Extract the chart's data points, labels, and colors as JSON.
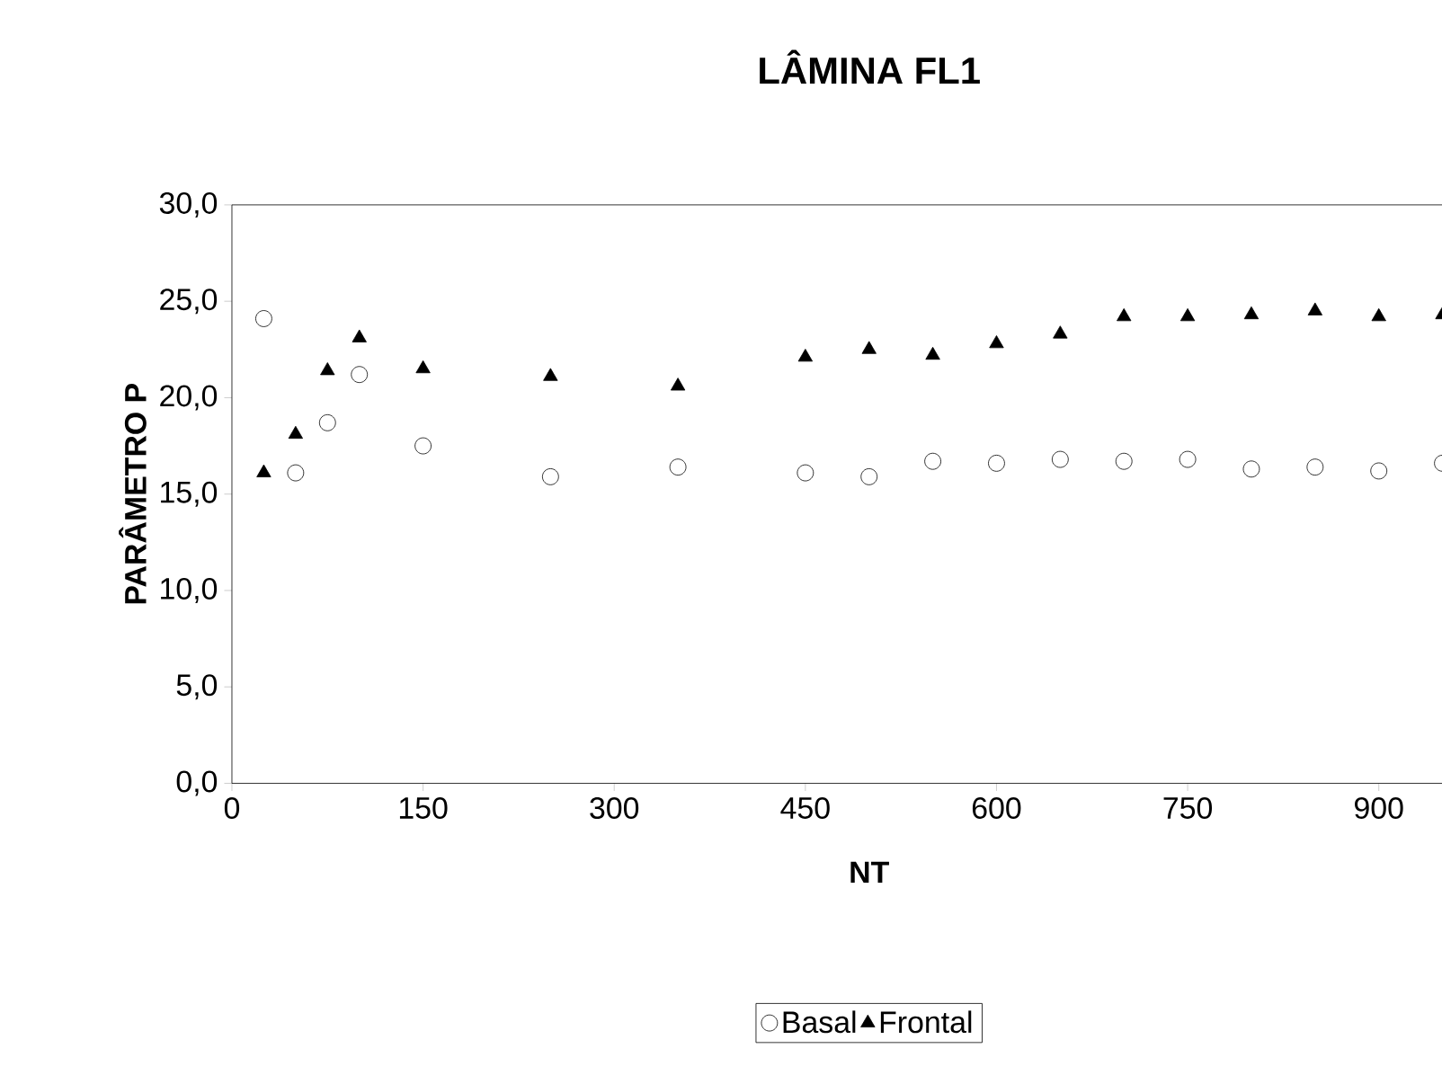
{
  "chart_data": {
    "type": "scatter",
    "title": "LÂMINA FL1",
    "xlabel": "NT",
    "ylabel": "PARÂMETRO P",
    "x": [
      25,
      50,
      75,
      100,
      150,
      250,
      350,
      450,
      500,
      550,
      600,
      650,
      700,
      750,
      800,
      850,
      900,
      950
    ],
    "series": [
      {
        "name": "Basal",
        "color": "#000000",
        "marker": "circle",
        "values": [
          24.1,
          16.1,
          18.7,
          21.2,
          17.5,
          15.9,
          16.4,
          16.1,
          15.9,
          16.7,
          16.6,
          16.8,
          16.7,
          16.8,
          16.3,
          16.4,
          16.2,
          16.6
        ]
      },
      {
        "name": "Frontal",
        "color": "#000000",
        "marker": "triangle",
        "values": [
          16.1,
          18.1,
          21.4,
          23.1,
          21.5,
          21.1,
          20.6,
          22.1,
          22.5,
          22.2,
          22.8,
          23.3,
          24.2,
          24.2,
          24.3,
          24.5,
          24.2,
          24.3
        ]
      }
    ],
    "xlim": [
      0,
      1000
    ],
    "xticks": [
      0,
      150,
      300,
      450,
      600,
      750,
      900
    ],
    "ylim": [
      0,
      30
    ],
    "yticks": [
      {
        "value": 0,
        "label": "0,0"
      },
      {
        "value": 5,
        "label": "5,0"
      },
      {
        "value": 10,
        "label": "10,0"
      },
      {
        "value": 15,
        "label": "15,0"
      },
      {
        "value": 20,
        "label": "20,0"
      },
      {
        "value": 25,
        "label": "25,0"
      },
      {
        "value": 30,
        "label": "30,0"
      }
    ],
    "grid": false,
    "legend": "bottom"
  }
}
